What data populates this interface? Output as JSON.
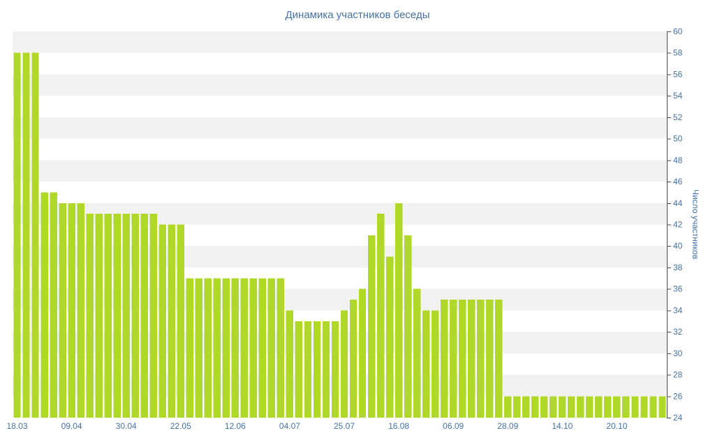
{
  "colors": {
    "background": "#ffffff",
    "bar": "#b0d829",
    "band": "#f2f2f2",
    "label": "#4572a7",
    "axis_line": "#4a4a4a"
  },
  "chart_data": {
    "type": "bar",
    "title": "Динамика участников беседы",
    "xlabel": "",
    "ylabel": "Число участников",
    "ylim": [
      24,
      60
    ],
    "ytick_step": 2,
    "grid": "alternating-horizontal-bands",
    "legend": "none",
    "yaxis_position": "right",
    "x_tick_labels": [
      "18.03",
      "09.04",
      "30.04",
      "22.05",
      "12.06",
      "04.07",
      "25.07",
      "16.08",
      "06.09",
      "28.09",
      "14.10",
      "20.10"
    ],
    "x_tick_indices": [
      0,
      6,
      12,
      18,
      24,
      30,
      36,
      42,
      48,
      54,
      60,
      66
    ],
    "values": [
      58,
      58,
      58,
      45,
      45,
      44,
      44,
      44,
      43,
      43,
      43,
      43,
      43,
      43,
      43,
      43,
      42,
      42,
      42,
      37,
      37,
      37,
      37,
      37,
      37,
      37,
      37,
      37,
      37,
      37,
      34,
      33,
      33,
      33,
      33,
      33,
      34,
      35,
      36,
      41,
      43,
      39,
      44,
      41,
      36,
      34,
      34,
      35,
      35,
      35,
      35,
      35,
      35,
      35,
      26,
      26,
      26,
      26,
      26,
      26,
      26,
      26,
      26,
      26,
      26,
      26,
      26,
      26,
      26,
      26,
      26,
      26
    ]
  }
}
